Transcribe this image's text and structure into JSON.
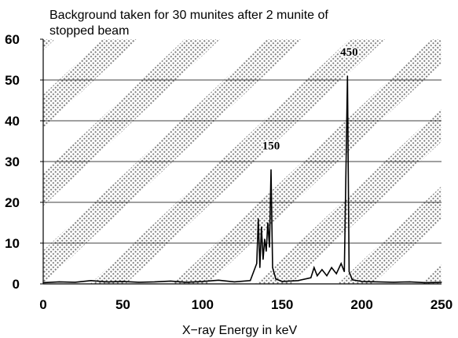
{
  "chart_data": {
    "type": "line",
    "title": "Background taken for 30 munites after 2 munite of stopped beam",
    "title_lines": [
      "Background taken for 30 munites after 2 munite of",
      "stopped beam"
    ],
    "xlabel": "X−ray Energy in keV",
    "ylabel": "",
    "xlim": [
      0,
      250
    ],
    "ylim": [
      0,
      60
    ],
    "x_ticks": [
      0,
      50,
      100,
      150,
      200,
      250
    ],
    "y_ticks": [
      0,
      10,
      20,
      30,
      40,
      50,
      60
    ],
    "grid": "horizontal",
    "legend": "none",
    "background_pattern": "diagonal-halftone-bands",
    "colors": {
      "line": "#000000",
      "grid": "#000000",
      "halftone": "#1a1a1a"
    },
    "annotations": [
      {
        "text": "150",
        "x": 143,
        "y": 33
      },
      {
        "text": "450",
        "x": 192,
        "y": 56
      }
    ],
    "series": [
      {
        "values": [
          {
            "x": 0,
            "y": 0.3
          },
          {
            "x": 10,
            "y": 0.5
          },
          {
            "x": 20,
            "y": 0.4
          },
          {
            "x": 30,
            "y": 0.8
          },
          {
            "x": 40,
            "y": 0.5
          },
          {
            "x": 50,
            "y": 0.6
          },
          {
            "x": 60,
            "y": 0.4
          },
          {
            "x": 70,
            "y": 0.5
          },
          {
            "x": 80,
            "y": 0.7
          },
          {
            "x": 90,
            "y": 0.4
          },
          {
            "x": 100,
            "y": 0.6
          },
          {
            "x": 110,
            "y": 0.9
          },
          {
            "x": 120,
            "y": 0.5
          },
          {
            "x": 130,
            "y": 0.8
          },
          {
            "x": 134,
            "y": 5
          },
          {
            "x": 135,
            "y": 16
          },
          {
            "x": 136,
            "y": 4
          },
          {
            "x": 137,
            "y": 14
          },
          {
            "x": 138,
            "y": 6
          },
          {
            "x": 139,
            "y": 11
          },
          {
            "x": 140,
            "y": 8
          },
          {
            "x": 141,
            "y": 15
          },
          {
            "x": 142,
            "y": 9
          },
          {
            "x": 143,
            "y": 28
          },
          {
            "x": 144,
            "y": 4
          },
          {
            "x": 146,
            "y": 1.2
          },
          {
            "x": 150,
            "y": 0.6
          },
          {
            "x": 160,
            "y": 0.8
          },
          {
            "x": 168,
            "y": 1.5
          },
          {
            "x": 170,
            "y": 4
          },
          {
            "x": 172,
            "y": 2
          },
          {
            "x": 175,
            "y": 3.5
          },
          {
            "x": 178,
            "y": 2
          },
          {
            "x": 181,
            "y": 4
          },
          {
            "x": 184,
            "y": 2.5
          },
          {
            "x": 187,
            "y": 5
          },
          {
            "x": 189,
            "y": 3
          },
          {
            "x": 191,
            "y": 51
          },
          {
            "x": 192,
            "y": 3
          },
          {
            "x": 194,
            "y": 1
          },
          {
            "x": 200,
            "y": 0.6
          },
          {
            "x": 210,
            "y": 0.5
          },
          {
            "x": 220,
            "y": 0.4
          },
          {
            "x": 230,
            "y": 0.5
          },
          {
            "x": 240,
            "y": 0.3
          },
          {
            "x": 250,
            "y": 0.4
          }
        ]
      }
    ]
  }
}
